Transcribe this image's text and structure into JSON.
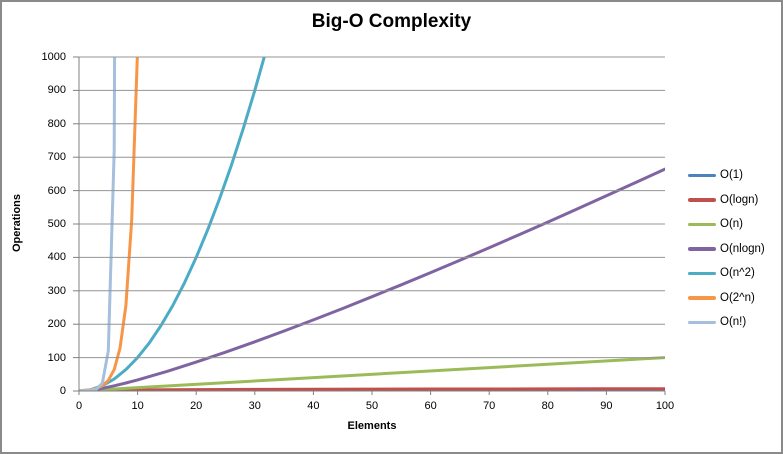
{
  "window": {
    "background": "#FFFFFF",
    "border_color": "#8A8A8A"
  },
  "chart_data": {
    "type": "line",
    "title": "Big-O Complexity",
    "xlabel": "Elements",
    "ylabel": "Operations",
    "xlim": [
      0,
      100
    ],
    "ylim": [
      0,
      1000
    ],
    "x_ticks": [
      0,
      10,
      20,
      30,
      40,
      50,
      60,
      70,
      80,
      90,
      100
    ],
    "y_ticks": [
      0,
      100,
      200,
      300,
      400,
      500,
      600,
      700,
      800,
      900,
      1000
    ],
    "grid": "horizontal-only",
    "grid_color": "#949494",
    "axis_color": "#808080",
    "legend_position": "right",
    "series": [
      {
        "name": "O(1)",
        "color": "#4F81BD",
        "points": [
          [
            0,
            1
          ],
          [
            100,
            1
          ]
        ]
      },
      {
        "name": "O(logn)",
        "color": "#C0504D",
        "points": [
          [
            1,
            0
          ],
          [
            2,
            1
          ],
          [
            3,
            1.58
          ],
          [
            4,
            2
          ],
          [
            5,
            2.32
          ],
          [
            6,
            2.58
          ],
          [
            8,
            3
          ],
          [
            10,
            3.32
          ],
          [
            15,
            3.91
          ],
          [
            20,
            4.32
          ],
          [
            30,
            4.91
          ],
          [
            40,
            5.32
          ],
          [
            50,
            5.64
          ],
          [
            60,
            5.91
          ],
          [
            70,
            6.13
          ],
          [
            80,
            6.32
          ],
          [
            90,
            6.49
          ],
          [
            100,
            6.64
          ]
        ]
      },
      {
        "name": "O(n)",
        "color": "#9BBB59",
        "points": [
          [
            0,
            0
          ],
          [
            100,
            100
          ]
        ]
      },
      {
        "name": "O(nlogn)",
        "color": "#8064A2",
        "points": [
          [
            1,
            0
          ],
          [
            2,
            2
          ],
          [
            4,
            8
          ],
          [
            6,
            15.5
          ],
          [
            8,
            24
          ],
          [
            10,
            33.2
          ],
          [
            15,
            58.6
          ],
          [
            20,
            86.4
          ],
          [
            25,
            116.1
          ],
          [
            30,
            147.2
          ],
          [
            35,
            179.5
          ],
          [
            40,
            212.9
          ],
          [
            45,
            247.1
          ],
          [
            50,
            282.2
          ],
          [
            55,
            318
          ],
          [
            60,
            354.4
          ],
          [
            65,
            391.4
          ],
          [
            70,
            429
          ],
          [
            75,
            467.1
          ],
          [
            80,
            505.8
          ],
          [
            85,
            544.8
          ],
          [
            90,
            584.3
          ],
          [
            95,
            624.2
          ],
          [
            100,
            664.4
          ]
        ]
      },
      {
        "name": "O(n^2)",
        "color": "#4BACC6",
        "points": [
          [
            0,
            0
          ],
          [
            2,
            4
          ],
          [
            4,
            16
          ],
          [
            6,
            36
          ],
          [
            8,
            64
          ],
          [
            10,
            100
          ],
          [
            12,
            144
          ],
          [
            14,
            196
          ],
          [
            16,
            256
          ],
          [
            18,
            324
          ],
          [
            20,
            400
          ],
          [
            22,
            484
          ],
          [
            24,
            576
          ],
          [
            26,
            676
          ],
          [
            28,
            784
          ],
          [
            30,
            900
          ],
          [
            32,
            1024
          ]
        ]
      },
      {
        "name": "O(2^n)",
        "color": "#F79646",
        "points": [
          [
            0,
            1
          ],
          [
            1,
            2
          ],
          [
            2,
            4
          ],
          [
            3,
            8
          ],
          [
            4,
            16
          ],
          [
            5,
            32
          ],
          [
            6,
            64
          ],
          [
            7,
            128
          ],
          [
            8,
            256
          ],
          [
            9,
            512
          ],
          [
            10,
            1024
          ]
        ]
      },
      {
        "name": "O(n!)",
        "color": "#A5BFDD",
        "points": [
          [
            0,
            1
          ],
          [
            1,
            1
          ],
          [
            2,
            2
          ],
          [
            3,
            6
          ],
          [
            4,
            24
          ],
          [
            5,
            120
          ],
          [
            6,
            720
          ],
          [
            7,
            5040
          ]
        ]
      }
    ]
  }
}
